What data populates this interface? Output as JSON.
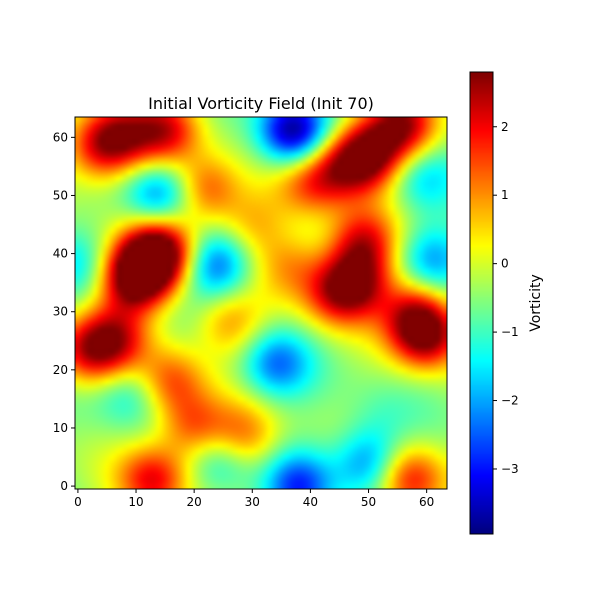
{
  "chart_data": {
    "type": "heatmap",
    "title": "Initial Vorticity Field (Init 70)",
    "xlabel": "",
    "ylabel": "",
    "colorbar_label": "Vorticity",
    "colormap": "jet",
    "grid": false,
    "grid_size": [
      64,
      64
    ],
    "xlim": [
      -0.5,
      63.5
    ],
    "ylim": [
      -0.5,
      63.5
    ],
    "x_ticks": [
      0,
      10,
      20,
      30,
      40,
      50,
      60
    ],
    "y_ticks": [
      0,
      10,
      20,
      30,
      40,
      50,
      60
    ],
    "color_range": [
      -3.95,
      2.8
    ],
    "colorbar_ticks": [
      2,
      1,
      0,
      -1,
      -2,
      -3
    ],
    "baseline": -0.4,
    "features": [
      {
        "x": 12,
        "y": 38,
        "value": 2.7
      },
      {
        "x": 9,
        "y": 35,
        "value": 1.9
      },
      {
        "x": 15,
        "y": 41,
        "value": 1.8
      },
      {
        "x": 7,
        "y": 60,
        "value": 2.0
      },
      {
        "x": 15,
        "y": 61,
        "value": 1.9
      },
      {
        "x": 3,
        "y": 58,
        "value": 1.3
      },
      {
        "x": 50,
        "y": 57,
        "value": 2.8
      },
      {
        "x": 56,
        "y": 62,
        "value": 2.3
      },
      {
        "x": 45,
        "y": 55,
        "value": 1.4
      },
      {
        "x": 40,
        "y": 52,
        "value": 1.2
      },
      {
        "x": 60,
        "y": 26,
        "value": 2.6
      },
      {
        "x": 58,
        "y": 30,
        "value": 1.5
      },
      {
        "x": 48,
        "y": 35,
        "value": 2.0
      },
      {
        "x": 49,
        "y": 42,
        "value": 1.9
      },
      {
        "x": 44,
        "y": 33,
        "value": 1.4
      },
      {
        "x": 6,
        "y": 25,
        "value": 2.0
      },
      {
        "x": 1,
        "y": 23,
        "value": 1.5
      },
      {
        "x": 16,
        "y": 18,
        "value": 1.4
      },
      {
        "x": 13,
        "y": 1,
        "value": 2.0
      },
      {
        "x": 57,
        "y": 1,
        "value": 2.0
      },
      {
        "x": 22,
        "y": 51,
        "value": 1.6
      },
      {
        "x": 20,
        "y": 10,
        "value": 1.5
      },
      {
        "x": 28,
        "y": 8,
        "value": 1.5
      },
      {
        "x": 26,
        "y": 28,
        "value": 1.0
      },
      {
        "x": 37,
        "y": 38,
        "value": 0.8
      },
      {
        "x": 30,
        "y": 45,
        "value": 0.7
      },
      {
        "x": 37,
        "y": 61,
        "value": -3.9
      },
      {
        "x": 24,
        "y": 38,
        "value": -2.6
      },
      {
        "x": 14,
        "y": 50,
        "value": -2.4
      },
      {
        "x": 34,
        "y": 21,
        "value": -2.3
      },
      {
        "x": 50,
        "y": 4,
        "value": -2.4
      },
      {
        "x": 38,
        "y": 0,
        "value": -2.6
      },
      {
        "x": 25,
        "y": 5,
        "value": -2.0
      },
      {
        "x": 59,
        "y": 53,
        "value": -1.6
      },
      {
        "x": 61,
        "y": 39,
        "value": -2.0
      },
      {
        "x": 9,
        "y": 16,
        "value": -1.5
      },
      {
        "x": 0,
        "y": 38,
        "value": -1.3
      },
      {
        "x": 52,
        "y": 12,
        "value": -0.8
      }
    ]
  }
}
